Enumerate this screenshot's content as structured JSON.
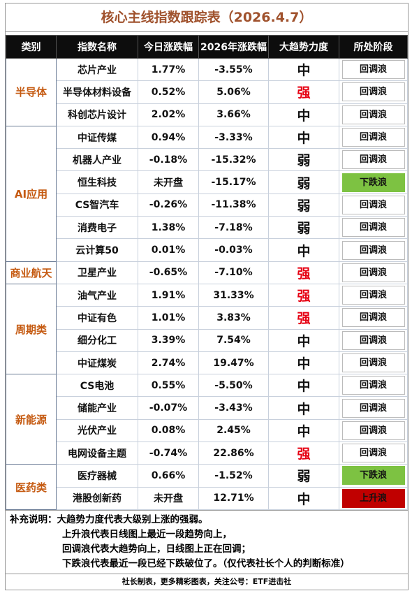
{
  "title": "核心主线指数跟踪表（2026.4.7）",
  "table": {
    "headers": [
      "类别",
      "指数名称",
      "今日涨跌幅",
      "2026年涨跌幅",
      "大趋势力度",
      "所处阶段"
    ],
    "groups": [
      {
        "category": "半导体",
        "rows": [
          {
            "name": "芯片产业",
            "today": "1.77%",
            "ytd": "-3.55%",
            "strength": "中",
            "stage": "回调浪"
          },
          {
            "name": "半导体材料设备",
            "today": "0.52%",
            "ytd": "5.06%",
            "strength": "强",
            "strength_color": "#e60012",
            "stage": "回调浪"
          },
          {
            "name": "科创芯片设计",
            "today": "2.02%",
            "ytd": "3.66%",
            "strength": "中",
            "stage": "回调浪"
          }
        ]
      },
      {
        "category": "AI应用",
        "rows": [
          {
            "name": "中证传媒",
            "today": "0.94%",
            "ytd": "-3.33%",
            "strength": "中",
            "stage": "回调浪"
          },
          {
            "name": "机器人产业",
            "today": "-0.18%",
            "ytd": "-15.32%",
            "strength": "弱",
            "stage": "回调浪"
          },
          {
            "name": "恒生科技",
            "today": "未开盘",
            "ytd": "-15.17%",
            "strength": "弱",
            "stage": "下跌浪",
            "stage_color": "#7dc242"
          },
          {
            "name": "CS智汽车",
            "today": "-0.26%",
            "ytd": "-11.38%",
            "strength": "弱",
            "stage": "回调浪"
          },
          {
            "name": "消费电子",
            "today": "1.38%",
            "ytd": "-7.18%",
            "strength": "弱",
            "stage": "回调浪"
          },
          {
            "name": "云计算50",
            "today": "0.01%",
            "ytd": "-0.03%",
            "strength": "中",
            "stage": "回调浪"
          }
        ]
      },
      {
        "category": "商业航天",
        "rows": [
          {
            "name": "卫星产业",
            "today": "-0.65%",
            "ytd": "-7.10%",
            "strength": "强",
            "strength_color": "#e60012",
            "stage": "回调浪"
          }
        ]
      },
      {
        "category": "周期类",
        "rows": [
          {
            "name": "油气产业",
            "today": "1.91%",
            "ytd": "31.33%",
            "strength": "强",
            "strength_color": "#e60012",
            "stage": "回调浪"
          },
          {
            "name": "中证有色",
            "today": "1.01%",
            "ytd": "3.83%",
            "strength": "强",
            "strength_color": "#e60012",
            "stage": "回调浪"
          },
          {
            "name": "细分化工",
            "today": "3.39%",
            "ytd": "7.54%",
            "strength": "中",
            "stage": "回调浪"
          },
          {
            "name": "中证煤炭",
            "today": "2.74%",
            "ytd": "19.47%",
            "strength": "中",
            "stage": "回调浪"
          }
        ]
      },
      {
        "category": "新能源",
        "rows": [
          {
            "name": "CS电池",
            "today": "0.55%",
            "ytd": "-5.50%",
            "strength": "中",
            "stage": "回调浪"
          },
          {
            "name": "储能产业",
            "today": "-0.07%",
            "ytd": "-3.43%",
            "strength": "中",
            "stage": "回调浪"
          },
          {
            "name": "光伏产业",
            "today": "0.08%",
            "ytd": "2.45%",
            "strength": "中",
            "stage": "回调浪"
          },
          {
            "name": "电网设备主题",
            "today": "-0.74%",
            "ytd": "22.86%",
            "strength": "强",
            "strength_color": "#e60012",
            "stage": "回调浪"
          }
        ]
      },
      {
        "category": "医药类",
        "rows": [
          {
            "name": "医疗器械",
            "today": "0.66%",
            "ytd": "-1.52%",
            "strength": "弱",
            "stage": "下跌浪",
            "stage_color": "#7dc242"
          },
          {
            "name": "港股创新药",
            "today": "未开盘",
            "ytd": "12.71%",
            "strength": "中",
            "stage": "上升浪",
            "stage_color": "#c00000"
          }
        ]
      }
    ]
  },
  "notes": {
    "label": "补充说明：",
    "lines": [
      "大趋势力度代表大级别上涨的强弱。",
      "上升浪代表日线图上最近一段趋势向上，",
      "回调浪代表大趋势向上，日线图上正在回调；",
      "下跌浪代表最近一段已经下跌破位了。（仅代表社长个人的判断标准）"
    ]
  },
  "footer": "社长制表，更多精彩图表，关注公号：ETF进击社"
}
